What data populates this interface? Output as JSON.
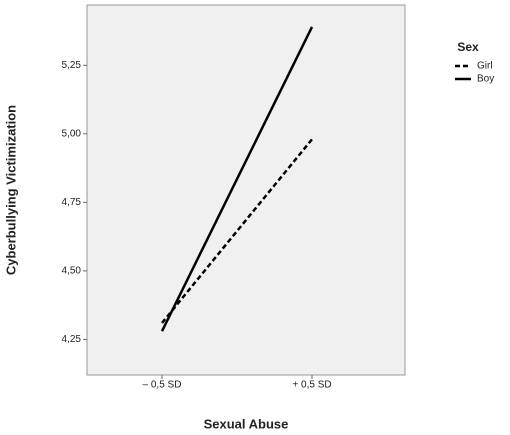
{
  "chart_data": {
    "type": "line",
    "x_label": "Sexual Abuse",
    "y_label": "Cyberbullying Victimization",
    "categories": [
      "– 0,5 SD",
      "+ 0,5 SD"
    ],
    "series": [
      {
        "name": "Girl",
        "color": "#000000",
        "style": "dashed",
        "values": [
          4.31,
          4.98
        ]
      },
      {
        "name": "Boy",
        "color": "#000000",
        "style": "solid",
        "values": [
          4.28,
          5.39
        ]
      }
    ],
    "legend_title": "Sex",
    "legend": "right",
    "ylim": [
      4.12,
      5.47
    ],
    "yticks": [
      {
        "value": 4.25,
        "label": "4,25"
      },
      {
        "value": 4.5,
        "label": "4,50"
      },
      {
        "value": 4.75,
        "label": "4,75"
      },
      {
        "value": 5,
        "label": "5,00"
      },
      {
        "value": 5.25,
        "label": "5,25"
      }
    ]
  }
}
